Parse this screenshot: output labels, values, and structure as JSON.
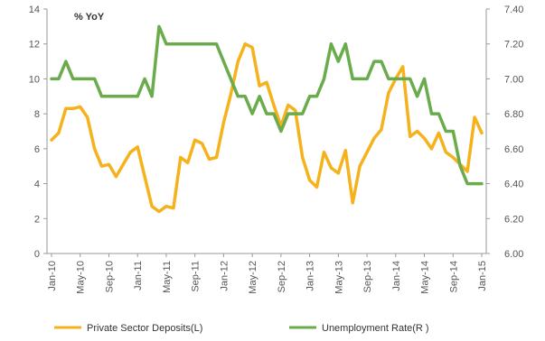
{
  "chart_data": {
    "type": "line",
    "annotation": "% YoY",
    "x": [
      "Jan-10",
      "Feb-10",
      "Mar-10",
      "Apr-10",
      "May-10",
      "Jun-10",
      "Jul-10",
      "Aug-10",
      "Sep-10",
      "Oct-10",
      "Nov-10",
      "Dec-10",
      "Jan-11",
      "Feb-11",
      "Mar-11",
      "Apr-11",
      "May-11",
      "Jun-11",
      "Jul-11",
      "Aug-11",
      "Sep-11",
      "Oct-11",
      "Nov-11",
      "Dec-11",
      "Jan-12",
      "Feb-12",
      "Mar-12",
      "Apr-12",
      "May-12",
      "Jun-12",
      "Jul-12",
      "Aug-12",
      "Sep-12",
      "Oct-12",
      "Nov-12",
      "Dec-12",
      "Jan-13",
      "Feb-13",
      "Mar-13",
      "Apr-13",
      "May-13",
      "Jun-13",
      "Jul-13",
      "Aug-13",
      "Sep-13",
      "Oct-13",
      "Nov-13",
      "Dec-13",
      "Jan-14",
      "Feb-14",
      "Mar-14",
      "Apr-14",
      "May-14",
      "Jun-14",
      "Jul-14",
      "Aug-14",
      "Sep-14",
      "Oct-14",
      "Nov-14",
      "Dec-14",
      "Jan-15"
    ],
    "x_tick_labels": [
      "Jan-10",
      "May-10",
      "Sep-10",
      "Jan-11",
      "May-11",
      "Sep-11",
      "Jan-12",
      "May-12",
      "Sep-12",
      "Jan-13",
      "May-13",
      "Sep-13",
      "Jan-14",
      "May-14",
      "Sep-14",
      "Jan-15"
    ],
    "y_left": {
      "min": 0,
      "max": 14,
      "step": 2,
      "tick_labels": [
        "0",
        "2",
        "4",
        "6",
        "8",
        "10",
        "12",
        "14"
      ]
    },
    "y_right": {
      "min": 6.0,
      "max": 7.4,
      "step": 0.2,
      "tick_labels": [
        "6.00",
        "6.20",
        "6.40",
        "6.60",
        "6.80",
        "7.00",
        "7.20",
        "7.40"
      ]
    },
    "series": [
      {
        "name": "Private Sector Deposits(L)",
        "axis": "left",
        "color": "#F5B21C",
        "values": [
          6.5,
          6.9,
          8.3,
          8.3,
          8.4,
          7.8,
          6.0,
          5.0,
          5.1,
          4.4,
          5.1,
          5.8,
          6.1,
          4.4,
          2.7,
          2.4,
          2.7,
          2.6,
          5.5,
          5.2,
          6.5,
          6.3,
          5.4,
          5.5,
          7.5,
          9.1,
          11.0,
          12.0,
          11.8,
          9.6,
          9.8,
          8.5,
          7.3,
          8.5,
          8.2,
          5.5,
          4.2,
          3.8,
          5.8,
          4.9,
          4.6,
          5.9,
          2.9,
          5.0,
          5.8,
          6.6,
          7.1,
          9.2,
          10.0,
          10.7,
          6.7,
          7.0,
          6.6,
          6.0,
          6.9,
          5.8,
          5.5,
          5.1,
          4.7,
          7.8,
          6.9
        ]
      },
      {
        "name": "Unemployment Rate(R )",
        "axis": "right",
        "color": "#6AAB4C",
        "values": [
          7.0,
          7.0,
          7.1,
          7.0,
          7.0,
          7.0,
          7.0,
          6.9,
          6.9,
          6.9,
          6.9,
          6.9,
          6.9,
          7.0,
          6.9,
          7.3,
          7.2,
          7.2,
          7.2,
          7.2,
          7.2,
          7.2,
          7.2,
          7.2,
          7.1,
          7.0,
          6.9,
          6.9,
          6.8,
          6.9,
          6.8,
          6.8,
          6.7,
          6.8,
          6.8,
          6.8,
          6.9,
          6.9,
          7.0,
          7.2,
          7.1,
          7.2,
          7.0,
          7.0,
          7.0,
          7.1,
          7.1,
          7.0,
          7.0,
          7.0,
          7.0,
          6.9,
          7.0,
          6.8,
          6.8,
          6.7,
          6.7,
          6.5,
          6.4,
          6.4,
          6.4
        ]
      }
    ],
    "grid": false,
    "legend_position": "bottom"
  }
}
